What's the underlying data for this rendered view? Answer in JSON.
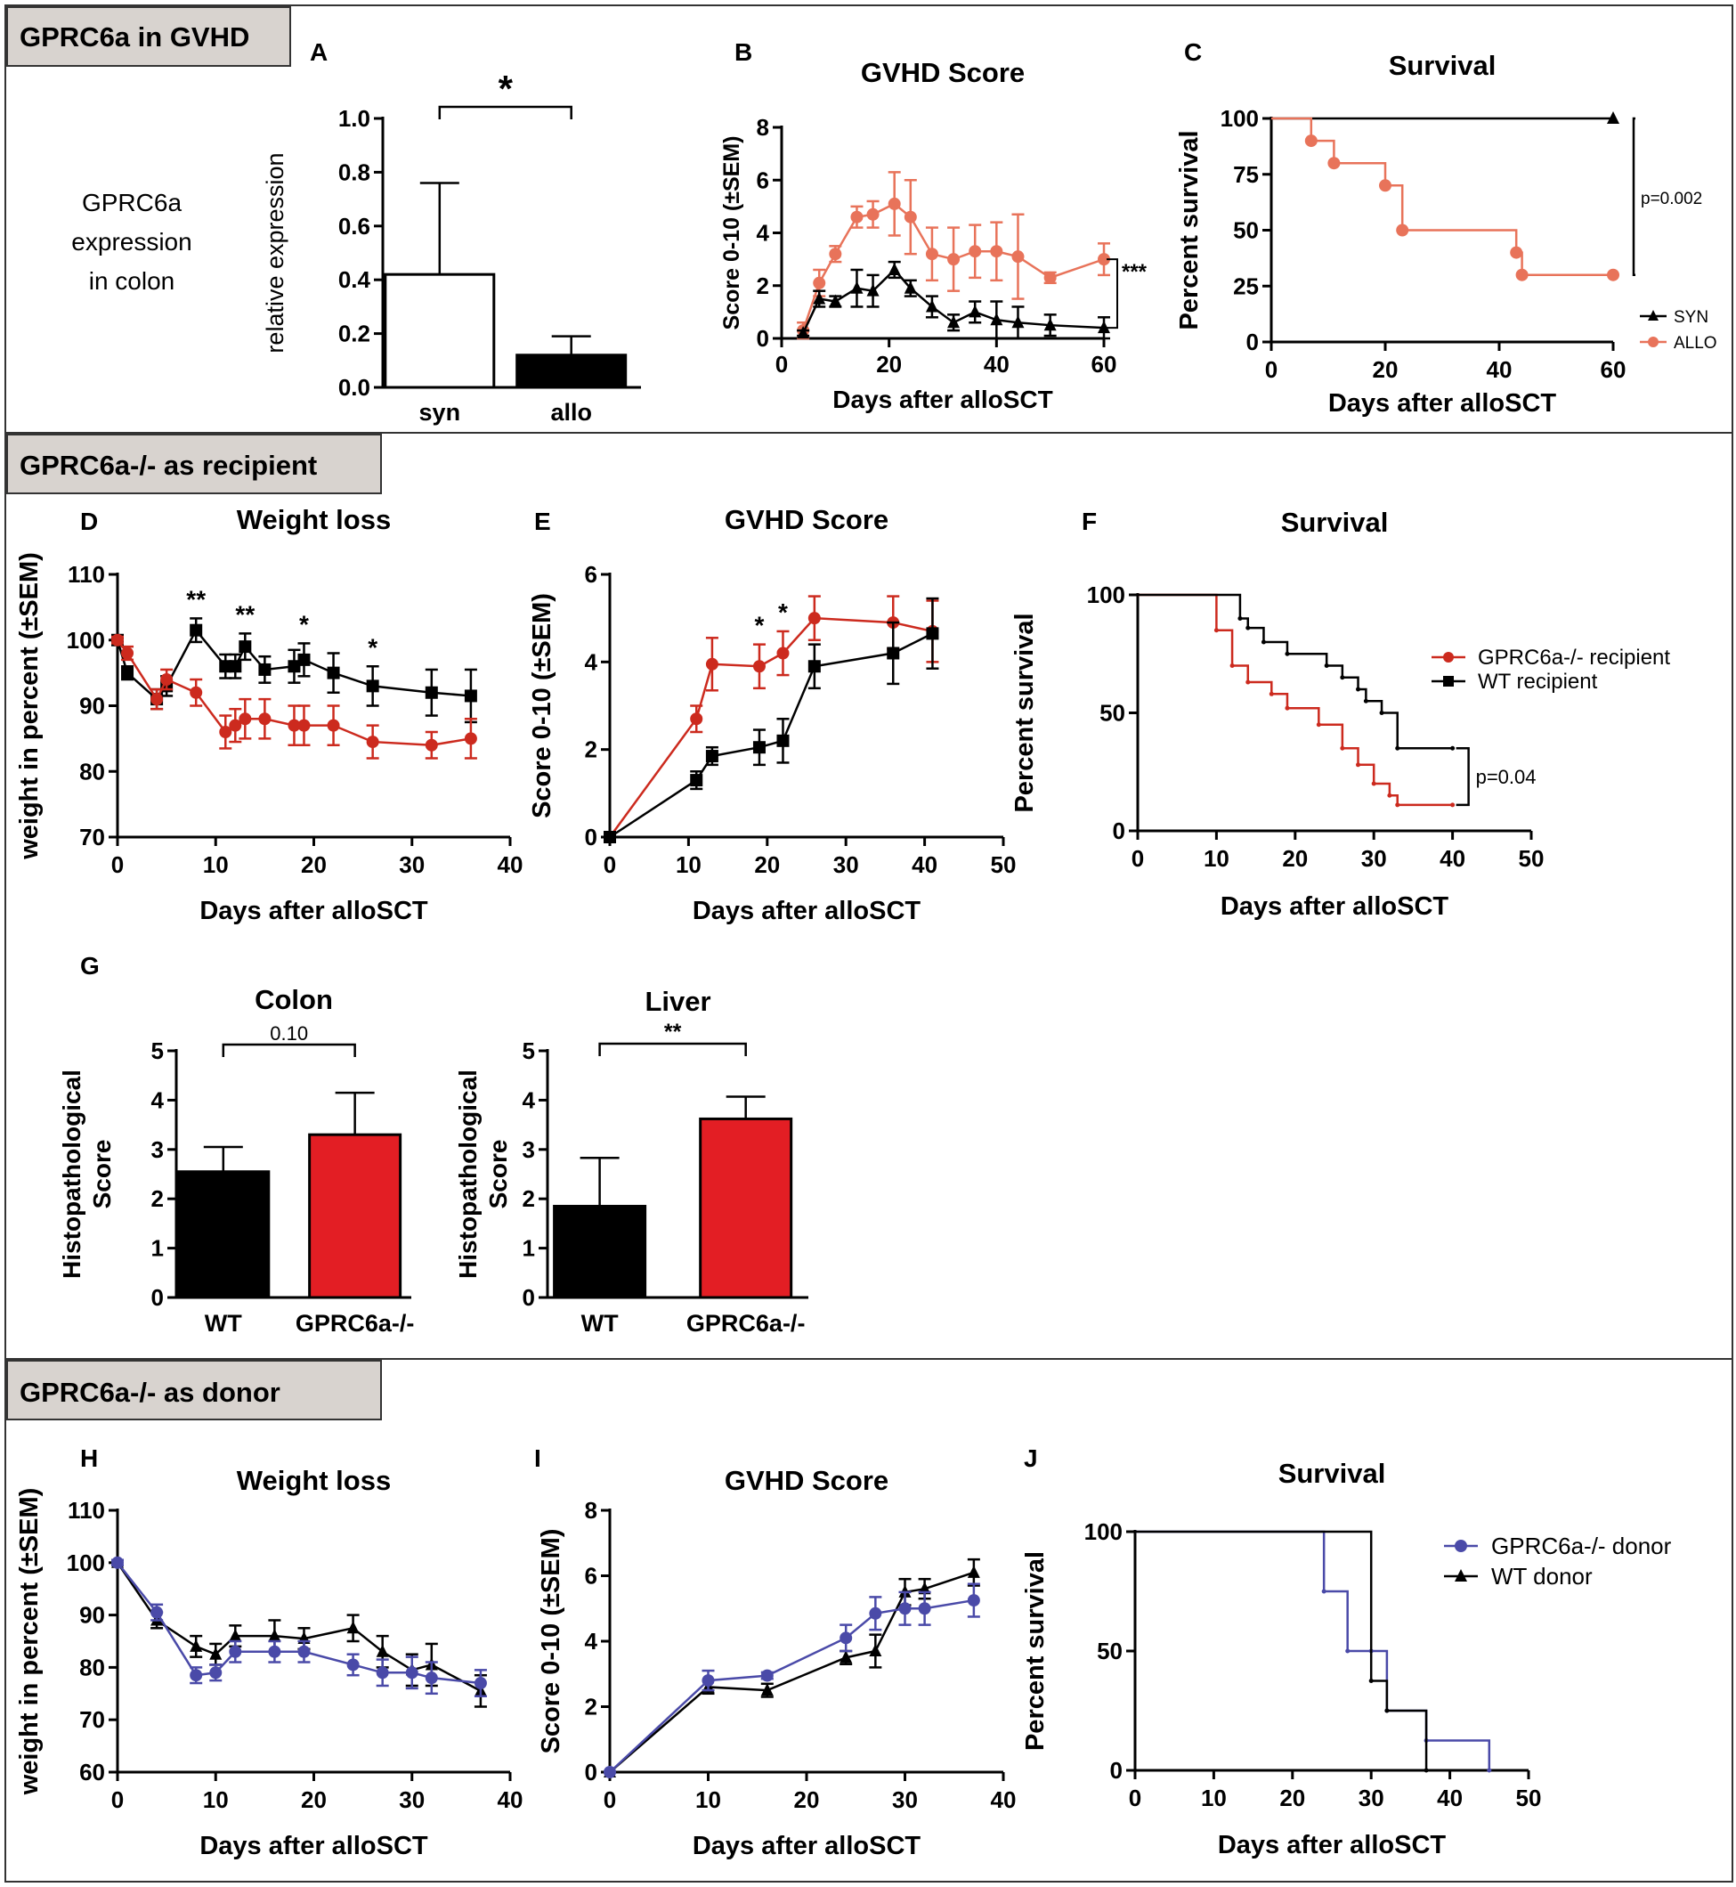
{
  "sections": [
    {
      "id": "s1",
      "label": "GPRC6a in GVHD"
    },
    {
      "id": "s2",
      "label": "GPRC6a-/- as recipient"
    },
    {
      "id": "s3",
      "label": "GPRC6a-/- as donor"
    }
  ],
  "side_text": [
    "GPRC6a",
    "expression",
    "in colon"
  ],
  "colors": {
    "black": "#000000",
    "orange": "#e8735a",
    "red": "#cc2a1e",
    "blue": "#4a4aa8",
    "bar_red": "#e31e24",
    "section_bg": "#d8d3cf",
    "frame": "#333333"
  },
  "chart_data": [
    {
      "id": "A",
      "panel_letter": "A",
      "type": "bar",
      "title": "",
      "ylabel": "relative expression",
      "xlabel": "",
      "ylim": [
        0,
        1.0
      ],
      "yticks": [
        "0.0",
        "0.2",
        "0.4",
        "0.6",
        "0.8",
        "1.0"
      ],
      "categories": [
        "syn",
        "allo"
      ],
      "values": [
        0.42,
        0.12
      ],
      "errors": [
        0.34,
        0.07
      ],
      "fills": [
        "#ffffff",
        "#000000"
      ],
      "significance": [
        {
          "from": 0,
          "to": 1,
          "label": "*"
        }
      ]
    },
    {
      "id": "B",
      "panel_letter": "B",
      "type": "line",
      "title": "GVHD Score",
      "ylabel": "Score 0-10 (±SEM)",
      "xlabel": "Days after alloSCT",
      "xlim": [
        0,
        60
      ],
      "ylim": [
        0,
        8
      ],
      "xticks": [
        "0",
        "20",
        "40",
        "60"
      ],
      "yticks": [
        "0",
        "2",
        "4",
        "6",
        "8"
      ],
      "series": [
        {
          "name": "ALLO",
          "color": "#e8735a",
          "marker": "circle",
          "x": [
            4,
            7,
            10,
            14,
            17,
            21,
            24,
            28,
            32,
            36,
            40,
            44,
            50,
            60
          ],
          "y": [
            0.3,
            2.1,
            3.2,
            4.6,
            4.7,
            5.1,
            4.6,
            3.2,
            3.0,
            3.3,
            3.3,
            3.1,
            2.3,
            3.0
          ],
          "err": [
            0.3,
            0.5,
            0.3,
            0.4,
            0.5,
            1.2,
            1.4,
            1.0,
            1.2,
            1.0,
            1.1,
            1.6,
            0.2,
            0.6
          ]
        },
        {
          "name": "SYN",
          "color": "#000000",
          "marker": "triangle",
          "x": [
            4,
            7,
            10,
            14,
            17,
            21,
            24,
            28,
            32,
            36,
            40,
            44,
            50,
            60
          ],
          "y": [
            0.2,
            1.5,
            1.4,
            1.9,
            1.8,
            2.6,
            1.9,
            1.2,
            0.6,
            1.0,
            0.7,
            0.6,
            0.5,
            0.4
          ],
          "err": [
            0.1,
            0.3,
            0.2,
            0.7,
            0.6,
            0.3,
            0.3,
            0.4,
            0.3,
            0.4,
            0.7,
            0.6,
            0.4,
            0.4
          ]
        }
      ],
      "annotations": [
        {
          "label": "***",
          "x_side": "right",
          "from": 0.4,
          "to": 3.0
        }
      ]
    },
    {
      "id": "C",
      "panel_letter": "C",
      "type": "line",
      "title": "Survival",
      "ylabel": "Percent survival",
      "xlabel": "Days after alloSCT",
      "xlim": [
        0,
        60
      ],
      "ylim": [
        0,
        100
      ],
      "xticks": [
        "0",
        "20",
        "40",
        "60"
      ],
      "yticks": [
        "0",
        "25",
        "50",
        "75",
        "100"
      ],
      "series": [
        {
          "name": "SYN",
          "color": "#000000",
          "marker": "triangle",
          "step": true,
          "x": [
            0,
            60
          ],
          "y": [
            100,
            100
          ],
          "marker_x": [
            60
          ],
          "marker_y": [
            100
          ]
        },
        {
          "name": "ALLO",
          "color": "#e8735a",
          "marker": "circle",
          "step": true,
          "x": [
            0,
            7,
            11,
            20,
            23,
            43,
            44,
            60
          ],
          "y": [
            100,
            90,
            80,
            70,
            50,
            40,
            30,
            30
          ],
          "marker_x": [
            7,
            11,
            20,
            23,
            43,
            44,
            60
          ],
          "marker_y": [
            90,
            80,
            70,
            50,
            40,
            30,
            30
          ]
        }
      ],
      "pvalue": "p=0.002",
      "legend_position": "bottom-right"
    },
    {
      "id": "D",
      "panel_letter": "D",
      "type": "line",
      "title": "Weight loss",
      "ylabel": "weight in percent (±SEM)",
      "xlabel": "Days after alloSCT",
      "xlim": [
        0,
        40
      ],
      "ylim": [
        70,
        110
      ],
      "xticks": [
        "0",
        "10",
        "20",
        "30",
        "40"
      ],
      "yticks": [
        "70",
        "80",
        "90",
        "100",
        "110"
      ],
      "series": [
        {
          "name": "WT recipient",
          "color": "#000000",
          "marker": "square",
          "x": [
            0,
            1,
            4,
            5,
            8,
            11,
            12,
            13,
            15,
            18,
            19,
            22,
            26,
            32,
            36
          ],
          "y": [
            100,
            95,
            91,
            93,
            101.5,
            96,
            96,
            99,
            95.5,
            96,
            97,
            95,
            93,
            92,
            91.5
          ],
          "err": [
            0.5,
            1,
            1.5,
            1.5,
            1.8,
            1.8,
            1.8,
            2,
            2,
            2.5,
            2.5,
            3,
            3,
            3.5,
            4
          ]
        },
        {
          "name": "GPRC6a-/- recipient",
          "color": "#cc2a1e",
          "marker": "circle",
          "x": [
            0,
            1,
            4,
            5,
            8,
            11,
            12,
            13,
            15,
            18,
            19,
            22,
            26,
            32,
            36
          ],
          "y": [
            100,
            98,
            91,
            94,
            92,
            86,
            87,
            88,
            88,
            87,
            87,
            87,
            84.5,
            84,
            85
          ],
          "err": [
            0.5,
            1,
            1.5,
            1.5,
            2,
            2.5,
            2.5,
            3,
            3,
            3,
            3,
            3,
            2.5,
            2,
            3
          ]
        }
      ],
      "stars": [
        {
          "x": 8,
          "label": "**"
        },
        {
          "x": 13,
          "label": "**"
        },
        {
          "x": 19,
          "label": "*"
        },
        {
          "x": 26,
          "label": "*"
        }
      ]
    },
    {
      "id": "E",
      "panel_letter": "E",
      "type": "line",
      "title": "GVHD Score",
      "ylabel": "Score 0-10 (±SEM)",
      "xlabel": "Days after alloSCT",
      "xlim": [
        0,
        50
      ],
      "ylim": [
        0,
        6
      ],
      "xticks": [
        "0",
        "10",
        "20",
        "30",
        "40",
        "50"
      ],
      "yticks": [
        "0",
        "2",
        "4",
        "6"
      ],
      "series": [
        {
          "name": "GPRC6a-/- recipient",
          "color": "#cc2a1e",
          "marker": "circle",
          "x": [
            0,
            11,
            13,
            19,
            22,
            26,
            36,
            41
          ],
          "y": [
            0,
            2.7,
            3.95,
            3.9,
            4.2,
            5.0,
            4.9,
            4.7
          ],
          "err": [
            0,
            0.3,
            0.6,
            0.5,
            0.5,
            0.5,
            0.6,
            0.7
          ]
        },
        {
          "name": "WT recipient",
          "color": "#000000",
          "marker": "square",
          "x": [
            0,
            11,
            13,
            19,
            22,
            26,
            36,
            41
          ],
          "y": [
            0,
            1.3,
            1.85,
            2.05,
            2.2,
            3.9,
            4.2,
            4.65
          ],
          "err": [
            0,
            0.2,
            0.2,
            0.4,
            0.5,
            0.5,
            0.7,
            0.8
          ]
        }
      ],
      "stars": [
        {
          "x": 19,
          "label": "*"
        },
        {
          "x": 22,
          "label": "*"
        }
      ]
    },
    {
      "id": "F",
      "panel_letter": "F",
      "type": "line",
      "title": "Survival",
      "ylabel": "Percent survival",
      "xlabel": "Days after alloSCT",
      "xlim": [
        0,
        50
      ],
      "ylim": [
        0,
        100
      ],
      "xticks": [
        "0",
        "10",
        "20",
        "30",
        "40",
        "50"
      ],
      "yticks": [
        "0",
        "50",
        "100"
      ],
      "series": [
        {
          "name": "GPRC6a-/- recipient",
          "color": "#cc2a1e",
          "marker": "circle",
          "step": true,
          "x": [
            0,
            10,
            12,
            14,
            17,
            19,
            23,
            26,
            28,
            30,
            32,
            33,
            40
          ],
          "y": [
            100,
            85,
            70,
            63,
            58,
            52,
            45,
            35,
            28,
            20,
            15,
            11,
            11
          ]
        },
        {
          "name": "WT recipient",
          "color": "#000000",
          "marker": "square",
          "step": true,
          "x": [
            0,
            13,
            14,
            16,
            19,
            24,
            26,
            28,
            29,
            31,
            33,
            40
          ],
          "y": [
            100,
            90,
            86,
            80,
            75,
            70,
            65,
            60,
            55,
            50,
            35,
            35
          ]
        }
      ],
      "pvalue": "p=0.04",
      "legend_position": "top-right"
    },
    {
      "id": "G1",
      "panel_letter": "G",
      "type": "bar",
      "title": "Colon",
      "ylabel": "Histopathological Score",
      "xlabel": "",
      "ylim": [
        0,
        5
      ],
      "yticks": [
        "0",
        "1",
        "2",
        "3",
        "4",
        "5"
      ],
      "categories": [
        "WT",
        "GPRC6a-/-"
      ],
      "values": [
        2.55,
        3.3
      ],
      "errors": [
        0.5,
        0.85
      ],
      "fills": [
        "#000000",
        "#e31e24"
      ],
      "significance": [
        {
          "from": 0,
          "to": 1,
          "label": "0.10"
        }
      ]
    },
    {
      "id": "G2",
      "panel_letter": "",
      "type": "bar",
      "title": "Liver",
      "ylabel": "Histopathological Score",
      "xlabel": "",
      "ylim": [
        0,
        5
      ],
      "yticks": [
        "0",
        "1",
        "2",
        "3",
        "4",
        "5"
      ],
      "categories": [
        "WT",
        "GPRC6a-/-"
      ],
      "values": [
        1.85,
        3.62
      ],
      "errors": [
        0.98,
        0.45
      ],
      "fills": [
        "#000000",
        "#e31e24"
      ],
      "significance": [
        {
          "from": 0,
          "to": 1,
          "label": "**"
        }
      ]
    },
    {
      "id": "H",
      "panel_letter": "H",
      "type": "line",
      "title": "Weight loss",
      "ylabel": "weight in percent (±SEM)",
      "xlabel": "Days after alloSCT",
      "xlim": [
        0,
        40
      ],
      "ylim": [
        60,
        110
      ],
      "xticks": [
        "0",
        "10",
        "20",
        "30",
        "40"
      ],
      "yticks": [
        "60",
        "70",
        "80",
        "90",
        "100",
        "110"
      ],
      "series": [
        {
          "name": "WT donor",
          "color": "#000000",
          "marker": "triangle",
          "x": [
            0,
            4,
            8,
            10,
            12,
            16,
            19,
            24,
            27,
            30,
            32,
            37
          ],
          "y": [
            100,
            89,
            84,
            82.5,
            86,
            86,
            85.5,
            87.5,
            83,
            79.5,
            80.5,
            75.5
          ],
          "err": [
            0.5,
            1.5,
            2,
            2,
            2,
            3,
            2,
            2.5,
            3,
            3,
            4,
            3
          ]
        },
        {
          "name": "GPRC6a-/- donor",
          "color": "#4a4aa8",
          "marker": "circle",
          "x": [
            0,
            4,
            8,
            10,
            12,
            16,
            19,
            24,
            27,
            30,
            32,
            37
          ],
          "y": [
            100,
            90.5,
            78.5,
            79,
            83,
            83,
            83,
            80.5,
            79,
            79,
            78,
            77
          ],
          "err": [
            0.5,
            1.5,
            1.5,
            1.5,
            2,
            2,
            2,
            2,
            2.5,
            3,
            3,
            2.5
          ]
        }
      ]
    },
    {
      "id": "I",
      "panel_letter": "I",
      "type": "line",
      "title": "GVHD Score",
      "ylabel": "Score 0-10 (±SEM)",
      "xlabel": "Days after alloSCT",
      "xlim": [
        0,
        40
      ],
      "ylim": [
        0,
        8
      ],
      "xticks": [
        "0",
        "10",
        "20",
        "30",
        "40"
      ],
      "yticks": [
        "0",
        "2",
        "4",
        "6",
        "8"
      ],
      "series": [
        {
          "name": "WT donor",
          "color": "#000000",
          "marker": "triangle",
          "x": [
            0,
            10,
            16,
            24,
            27,
            30,
            32,
            37
          ],
          "y": [
            0,
            2.6,
            2.5,
            3.5,
            3.7,
            5.5,
            5.6,
            6.1
          ],
          "err": [
            0,
            0.2,
            0.2,
            0.2,
            0.5,
            0.4,
            0.3,
            0.4
          ]
        },
        {
          "name": "GPRC6a-/- donor",
          "color": "#4a4aa8",
          "marker": "circle",
          "x": [
            0,
            10,
            16,
            24,
            27,
            30,
            32,
            37
          ],
          "y": [
            0,
            2.8,
            2.95,
            4.1,
            4.85,
            5.0,
            5.0,
            5.25
          ],
          "err": [
            0,
            0.3,
            0.1,
            0.4,
            0.5,
            0.5,
            0.5,
            0.5
          ]
        }
      ]
    },
    {
      "id": "J",
      "panel_letter": "J",
      "type": "line",
      "title": "Survival",
      "ylabel": "Percent survival",
      "xlabel": "Days after alloSCT",
      "xlim": [
        0,
        50
      ],
      "ylim": [
        0,
        100
      ],
      "xticks": [
        "0",
        "10",
        "20",
        "30",
        "40",
        "50"
      ],
      "yticks": [
        "0",
        "50",
        "100"
      ],
      "series": [
        {
          "name": "GPRC6a-/- donor",
          "color": "#4a4aa8",
          "marker": "circle",
          "step": true,
          "x": [
            0,
            24,
            27,
            30,
            32,
            37,
            45
          ],
          "y": [
            100,
            75,
            50,
            50,
            25,
            12.5,
            0
          ]
        },
        {
          "name": "WT donor",
          "color": "#000000",
          "marker": "triangle",
          "step": true,
          "x": [
            0,
            30,
            32,
            37
          ],
          "y": [
            100,
            37.5,
            25,
            0
          ]
        }
      ],
      "legend_position": "top-right"
    }
  ]
}
